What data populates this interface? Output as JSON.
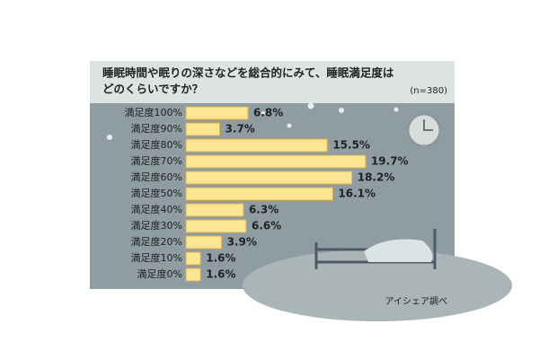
{
  "chart_data": {
    "type": "bar",
    "title": [
      "睡眠時間や眠りの深さなどを総合的にみて、睡眠満足度は",
      "どのくらいですか？"
    ],
    "note": "(n=380)",
    "source": "アイシェア調べ",
    "categories": [
      "満足度100%",
      "満足度90%",
      "満足度80%",
      "満足度70%",
      "満足度60%",
      "満足度50%",
      "満足度40%",
      "満足度30%",
      "満足度20%",
      "満足度10%",
      "満足度0%"
    ],
    "values": [
      6.8,
      3.7,
      15.5,
      19.7,
      18.2,
      16.1,
      6.3,
      6.6,
      3.9,
      1.6,
      1.6
    ],
    "value_labels": [
      "6.8%",
      "3.7%",
      "15.5%",
      "19.7%",
      "18.2%",
      "16.1%",
      "6.3%",
      "6.6%",
      "3.9%",
      "1.6%",
      "1.6%"
    ],
    "color": "#fde594"
  }
}
